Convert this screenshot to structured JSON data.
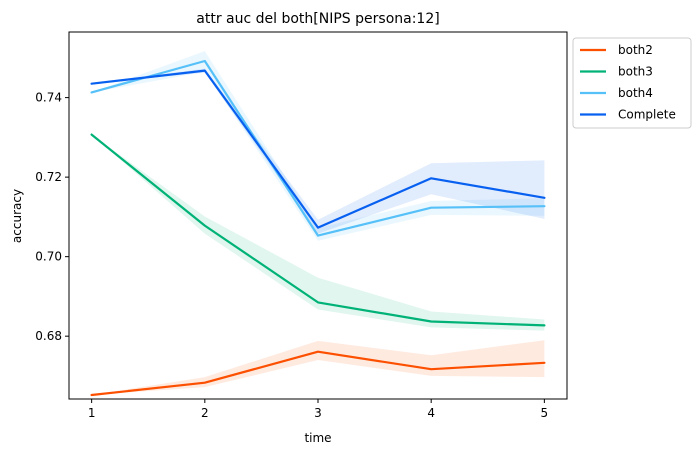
{
  "chart_data": {
    "type": "line",
    "title": "attr auc del both[NIPS persona:12]",
    "xlabel": "time",
    "ylabel": "accuracy",
    "x": [
      1,
      2,
      3,
      4,
      5
    ],
    "xlim": [
      0.8,
      5.2
    ],
    "ylim": [
      0.6642,
      0.7565
    ],
    "xticks": [
      "1",
      "2",
      "3",
      "4",
      "5"
    ],
    "yticks": [
      "0.68",
      "0.70",
      "0.72",
      "0.74"
    ],
    "legend_position": "outside-upper-right",
    "series": [
      {
        "name": "both2",
        "color": "#fc5000",
        "values": [
          0.6652,
          0.6683,
          0.6761,
          0.6717,
          0.6733
        ],
        "band_low": [
          0.6652,
          0.6672,
          0.674,
          0.67,
          0.6697
        ],
        "band_high": [
          0.6652,
          0.6697,
          0.6788,
          0.6752,
          0.679
        ]
      },
      {
        "name": "both3",
        "color": "#00b277",
        "values": [
          0.7307,
          0.7078,
          0.6885,
          0.6837,
          0.6827
        ],
        "band_low": [
          0.7307,
          0.7058,
          0.6867,
          0.6822,
          0.6814
        ],
        "band_high": [
          0.7307,
          0.7101,
          0.6947,
          0.6862,
          0.6842
        ]
      },
      {
        "name": "both4",
        "color": "#56c0f8",
        "values": [
          0.7413,
          0.7492,
          0.7053,
          0.7123,
          0.7127
        ],
        "band_low": [
          0.7413,
          0.7465,
          0.704,
          0.7105,
          0.7103
        ],
        "band_high": [
          0.7413,
          0.7517,
          0.7072,
          0.714,
          0.7147
        ]
      },
      {
        "name": "Complete",
        "color": "#0860f0",
        "values": [
          0.7435,
          0.7468,
          0.7073,
          0.7197,
          0.7148
        ],
        "band_low": [
          0.7435,
          0.7463,
          0.7058,
          0.7157,
          0.7095
        ],
        "band_high": [
          0.7435,
          0.7473,
          0.7093,
          0.7235,
          0.7242
        ]
      }
    ]
  }
}
